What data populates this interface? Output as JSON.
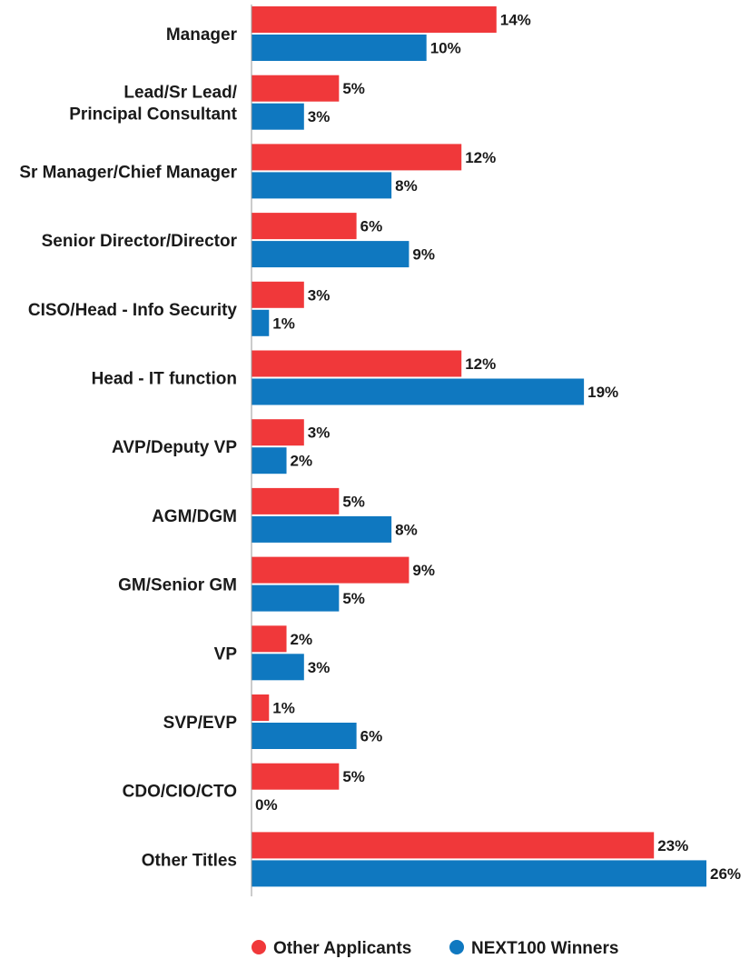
{
  "chart_data": {
    "type": "bar",
    "orientation": "horizontal",
    "categories": [
      [
        "Manager"
      ],
      [
        "Lead/Sr Lead/",
        "Principal Consultant"
      ],
      [
        "Sr Manager/Chief Manager"
      ],
      [
        "Senior Director/Director"
      ],
      [
        "CISO/Head - Info Security"
      ],
      [
        "Head - IT function"
      ],
      [
        "AVP/Deputy VP"
      ],
      [
        "AGM/DGM"
      ],
      [
        "GM/Senior GM"
      ],
      [
        "VP"
      ],
      [
        "SVP/EVP"
      ],
      [
        "CDO/CIO/CTO"
      ],
      [
        "Other Titles"
      ]
    ],
    "series": [
      {
        "name": "Other Applicants",
        "color": "#f0383a",
        "values": [
          14,
          5,
          12,
          6,
          3,
          12,
          3,
          5,
          9,
          2,
          1,
          5,
          23
        ]
      },
      {
        "name": "NEXT100 Winners",
        "color": "#0f78c0",
        "values": [
          10,
          3,
          8,
          9,
          1,
          19,
          2,
          8,
          5,
          3,
          6,
          0,
          26
        ]
      }
    ],
    "value_suffix": "%",
    "xlim": [
      0,
      26
    ],
    "grid": false,
    "legend_position": "bottom-center"
  }
}
